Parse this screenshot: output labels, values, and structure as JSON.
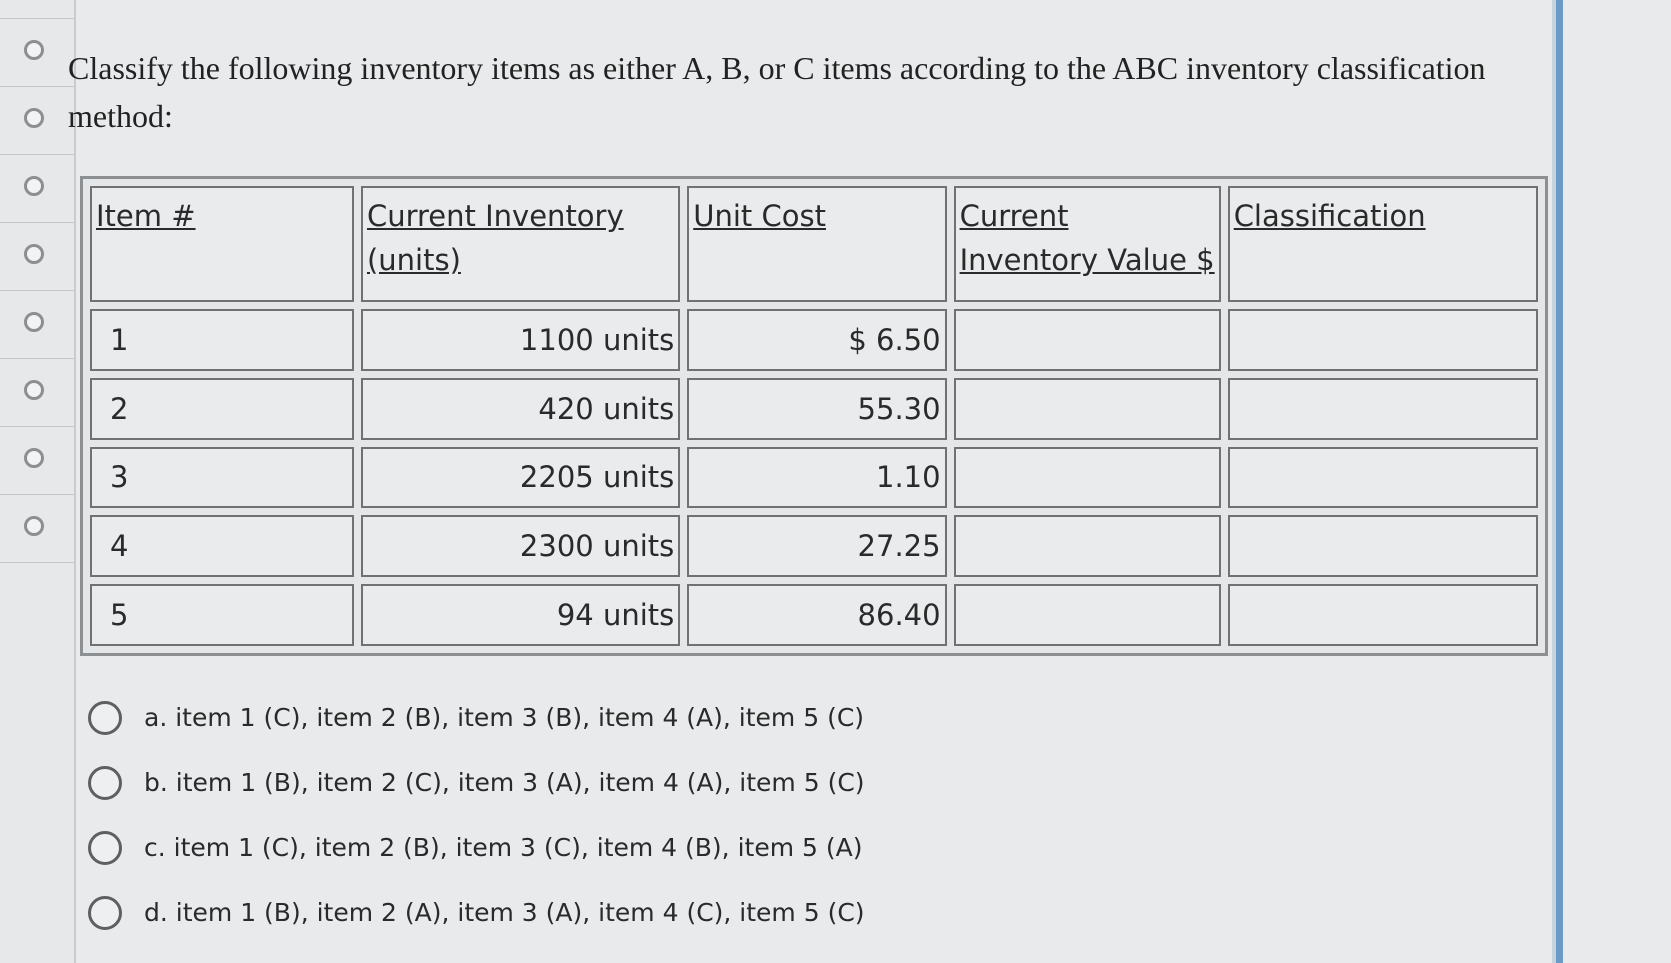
{
  "question": {
    "text": "Classify the following inventory items as either A, B, or C items according to the ABC inventory classification method:"
  },
  "table": {
    "headers": [
      "Item #",
      "Current Inventory (units)",
      "Unit Cost",
      "Current Inventory Value $",
      "Classification"
    ],
    "rows": [
      [
        "1",
        "1100 units",
        "$ 6.50"
      ],
      [
        "2",
        "420 units",
        "55.30"
      ],
      [
        "3",
        "2205 units",
        "1.10"
      ],
      [
        "4",
        "2300 units",
        "27.25"
      ],
      [
        "5",
        "94 units",
        "86.40"
      ]
    ]
  },
  "options": [
    "a. item 1 (C), item 2 (B), item 3 (B), item 4 (A), item 5 (C)",
    "b. item 1 (B), item 2 (C), item 3 (A), item 4 (A), item 5 (C)",
    "c. item 1 (C), item 2 (B), item 3 (C), item 4 (B), item 5 (A)",
    "d. item 1 (B), item 2 (A), item 3 (A), item 4 (C), item 5 (C)"
  ]
}
